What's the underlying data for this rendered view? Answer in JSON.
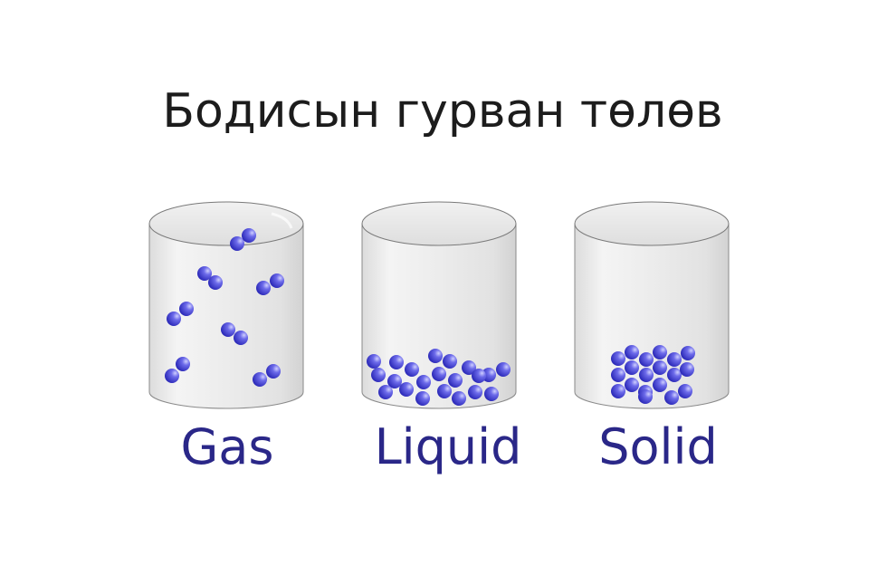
{
  "title": "Бодисын гурван төлөв",
  "colors": {
    "label": "#2a2788",
    "particle": "#3c3ad0",
    "particle_highlight": "#c9c8ff",
    "container_stroke": "#7a7a7a",
    "container_fill": "#e8e8e8",
    "title": "#1c1c1c"
  },
  "states": [
    {
      "id": "gas",
      "label": "Gas"
    },
    {
      "id": "liquid",
      "label": "Liquid"
    },
    {
      "id": "solid",
      "label": "Solid"
    }
  ]
}
